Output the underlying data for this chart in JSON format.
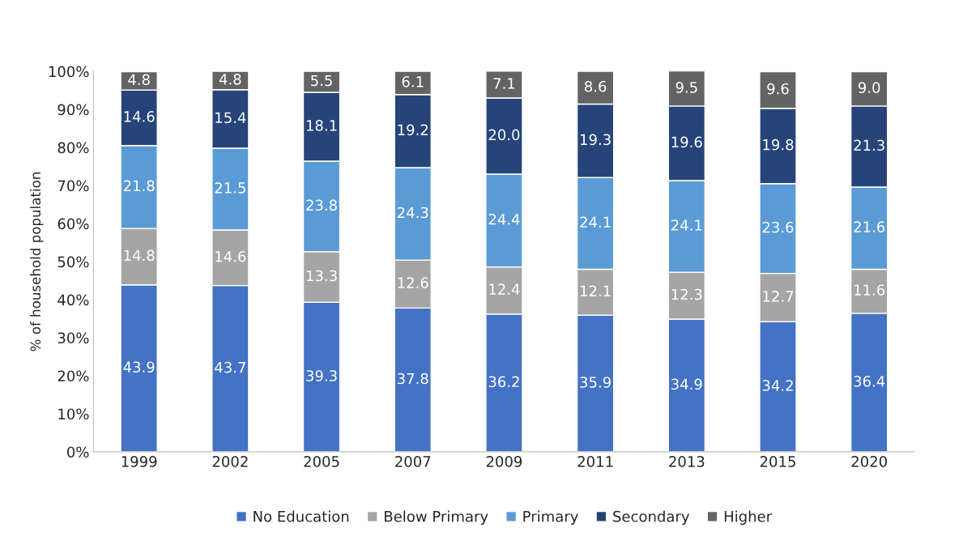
{
  "chart_data": {
    "type": "bar",
    "stacked": true,
    "ylabel": "% of household population",
    "categories": [
      "1999",
      "2002",
      "2005",
      "2007",
      "2009",
      "2011",
      "2013",
      "2015",
      "2020"
    ],
    "series": [
      {
        "name": "No Education",
        "color": "#4472c4",
        "values": [
          43.9,
          43.7,
          39.3,
          37.8,
          36.2,
          35.9,
          34.9,
          34.2,
          36.4
        ],
        "value_labels": [
          "43.9",
          "43.7",
          "39.3",
          "37.8",
          "36.2",
          "35.9",
          "34.9",
          "34.2",
          "36.4"
        ]
      },
      {
        "name": "Below Primary",
        "color": "#a5a5a5",
        "values": [
          14.8,
          14.6,
          13.3,
          12.6,
          12.4,
          12.1,
          12.3,
          12.7,
          11.6
        ],
        "value_labels": [
          "14.8",
          "14.6",
          "13.3",
          "12.6",
          "12.4",
          "12.1",
          "12.3",
          "12.7",
          "11.6"
        ]
      },
      {
        "name": "Primary",
        "color": "#5b9bd5",
        "values": [
          21.8,
          21.5,
          23.8,
          24.3,
          24.4,
          24.1,
          24.1,
          23.6,
          21.6
        ],
        "value_labels": [
          "21.8",
          "21.5",
          "23.8",
          "24.3",
          "24.4",
          "24.1",
          "24.1",
          "23.6",
          "21.6"
        ]
      },
      {
        "name": "Secondary",
        "color": "#264478",
        "values": [
          14.6,
          15.4,
          18.1,
          19.2,
          20.0,
          19.3,
          19.6,
          19.8,
          21.3
        ],
        "value_labels": [
          "14.6",
          "15.4",
          "18.1",
          "19.2",
          "20.0",
          "19.3",
          "19.6",
          "19.8",
          "21.3"
        ]
      },
      {
        "name": "Higher",
        "color": "#636363",
        "values": [
          4.8,
          4.8,
          5.5,
          6.1,
          7.1,
          8.6,
          9.5,
          9.6,
          9.0
        ],
        "value_labels": [
          "4.8",
          "4.8",
          "5.5",
          "6.1",
          "7.1",
          "8.6",
          "9.5",
          "9.6",
          "9.0"
        ]
      }
    ],
    "ylim": [
      0,
      100
    ],
    "yticks": [
      {
        "value": 0,
        "label": "0%"
      },
      {
        "value": 10,
        "label": "10%"
      },
      {
        "value": 20,
        "label": "20%"
      },
      {
        "value": 30,
        "label": "30%"
      },
      {
        "value": 40,
        "label": "40%"
      },
      {
        "value": 50,
        "label": "50%"
      },
      {
        "value": 60,
        "label": "60%"
      },
      {
        "value": 70,
        "label": "70%"
      },
      {
        "value": 80,
        "label": "80%"
      },
      {
        "value": 90,
        "label": "90%"
      },
      {
        "value": 100,
        "label": "100%"
      }
    ],
    "grid": false,
    "legend": "bottom"
  }
}
